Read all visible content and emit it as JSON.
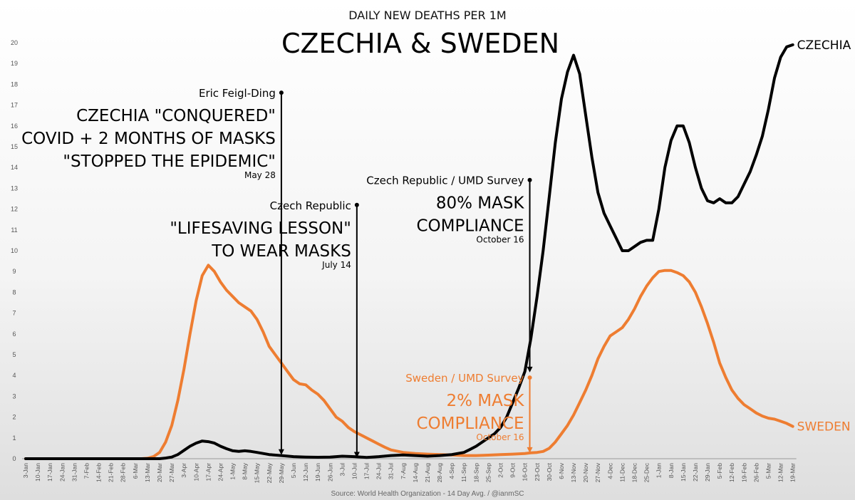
{
  "colors": {
    "czechia": "#000000",
    "sweden": "#ee7d31",
    "axis": "#555555"
  },
  "chart_data": {
    "type": "line",
    "title": "CZECHIA & SWEDEN",
    "subtitle": "DAILY NEW DEATHS PER 1M",
    "source": "Source: World Health Organization - 14 Day Avg. / @ianmSC",
    "xlabel": "",
    "ylabel": "",
    "ylim": [
      0,
      20
    ],
    "y_ticks": [
      0,
      1,
      2,
      3,
      4,
      5,
      6,
      7,
      8,
      9,
      10,
      11,
      12,
      13,
      14,
      15,
      16,
      17,
      18,
      19,
      20
    ],
    "x_start_label": "3-Jan",
    "x_ticks": [
      "3-Jan",
      "10-Jan",
      "17-Jan",
      "24-Jan",
      "31-Jan",
      "7-Feb",
      "14-Feb",
      "21-Feb",
      "28-Feb",
      "6-Mar",
      "13-Mar",
      "20-Mar",
      "27-Mar",
      "3-Apr",
      "10-Apr",
      "17-Apr",
      "24-Apr",
      "1-May",
      "8-May",
      "15-May",
      "22-May",
      "29-May",
      "5-Jun",
      "12-Jun",
      "19-Jun",
      "26-Jun",
      "3-Jul",
      "10-Jul",
      "17-Jul",
      "24-Jul",
      "31-Jul",
      "7-Aug",
      "14-Aug",
      "21-Aug",
      "28-Aug",
      "4-Sep",
      "11-Sep",
      "18-Sep",
      "25-Sep",
      "2-Oct",
      "9-Oct",
      "16-Oct",
      "23-Oct",
      "30-Oct",
      "6-Nov",
      "13-Nov",
      "20-Nov",
      "27-Nov",
      "4-Dec",
      "11-Dec",
      "18-Dec",
      "25-Dec",
      "1-Jan",
      "8-Jan",
      "15-Jan",
      "22-Jan",
      "29-Jan",
      "5-Feb",
      "12-Feb",
      "19-Feb",
      "26-Feb",
      "5-Mar",
      "12-Mar",
      "19-Mar"
    ],
    "series": [
      {
        "name": "CZECHIA",
        "label": "CZECHIA",
        "points": [
          [
            0,
            0
          ],
          [
            11,
            0
          ],
          [
            11.5,
            0.03
          ],
          [
            12,
            0.08
          ],
          [
            12.5,
            0.2
          ],
          [
            13,
            0.4
          ],
          [
            13.5,
            0.6
          ],
          [
            14,
            0.75
          ],
          [
            14.5,
            0.85
          ],
          [
            15,
            0.82
          ],
          [
            15.5,
            0.75
          ],
          [
            16,
            0.6
          ],
          [
            16.5,
            0.48
          ],
          [
            17,
            0.38
          ],
          [
            17.5,
            0.35
          ],
          [
            18,
            0.38
          ],
          [
            18.5,
            0.35
          ],
          [
            19,
            0.3
          ],
          [
            19.5,
            0.25
          ],
          [
            20,
            0.2
          ],
          [
            21,
            0.15
          ],
          [
            22,
            0.1
          ],
          [
            23,
            0.08
          ],
          [
            24,
            0.07
          ],
          [
            25,
            0.08
          ],
          [
            26,
            0.12
          ],
          [
            27,
            0.1
          ],
          [
            28,
            0.06
          ],
          [
            29,
            0.1
          ],
          [
            30,
            0.15
          ],
          [
            31,
            0.18
          ],
          [
            32,
            0.15
          ],
          [
            33,
            0.12
          ],
          [
            34,
            0.15
          ],
          [
            35,
            0.2
          ],
          [
            36,
            0.3
          ],
          [
            36.5,
            0.45
          ],
          [
            37,
            0.6
          ],
          [
            37.5,
            0.8
          ],
          [
            38,
            1.0
          ],
          [
            38.5,
            1.2
          ],
          [
            39,
            1.5
          ],
          [
            39.5,
            2.0
          ],
          [
            40,
            2.7
          ],
          [
            40.5,
            3.4
          ],
          [
            41,
            4.2
          ],
          [
            41.5,
            5.8
          ],
          [
            42,
            7.8
          ],
          [
            42.5,
            10.0
          ],
          [
            43,
            12.6
          ],
          [
            43.5,
            15.2
          ],
          [
            44,
            17.3
          ],
          [
            44.5,
            18.6
          ],
          [
            45,
            19.4
          ],
          [
            45.5,
            18.5
          ],
          [
            46,
            16.5
          ],
          [
            46.5,
            14.5
          ],
          [
            47,
            12.8
          ],
          [
            47.5,
            11.8
          ],
          [
            48,
            11.2
          ],
          [
            48.5,
            10.6
          ],
          [
            49,
            10.0
          ],
          [
            49.5,
            10.0
          ],
          [
            50,
            10.2
          ],
          [
            50.5,
            10.4
          ],
          [
            51,
            10.5
          ],
          [
            51.5,
            10.5
          ],
          [
            52,
            12.0
          ],
          [
            52.5,
            14.0
          ],
          [
            53,
            15.3
          ],
          [
            53.5,
            16.0
          ],
          [
            54,
            16.0
          ],
          [
            54.5,
            15.2
          ],
          [
            55,
            14.0
          ],
          [
            55.5,
            13.0
          ],
          [
            56,
            12.4
          ],
          [
            56.5,
            12.3
          ],
          [
            57,
            12.5
          ],
          [
            57.5,
            12.3
          ],
          [
            58,
            12.3
          ],
          [
            58.5,
            12.6
          ],
          [
            59,
            13.2
          ],
          [
            59.5,
            13.8
          ],
          [
            60,
            14.6
          ],
          [
            60.5,
            15.5
          ],
          [
            61,
            16.8
          ],
          [
            61.5,
            18.3
          ],
          [
            62,
            19.3
          ],
          [
            62.5,
            19.8
          ],
          [
            63,
            19.9
          ]
        ]
      },
      {
        "name": "SWEDEN",
        "label": "SWEDEN",
        "points": [
          [
            0,
            0
          ],
          [
            9.5,
            0
          ],
          [
            10,
            0.02
          ],
          [
            10.5,
            0.1
          ],
          [
            11,
            0.3
          ],
          [
            11.5,
            0.8
          ],
          [
            12,
            1.6
          ],
          [
            12.5,
            2.8
          ],
          [
            13,
            4.3
          ],
          [
            13.5,
            6.0
          ],
          [
            14,
            7.6
          ],
          [
            14.5,
            8.8
          ],
          [
            15,
            9.3
          ],
          [
            15.5,
            9.0
          ],
          [
            16,
            8.5
          ],
          [
            16.5,
            8.1
          ],
          [
            17,
            7.8
          ],
          [
            17.5,
            7.5
          ],
          [
            18,
            7.3
          ],
          [
            18.5,
            7.1
          ],
          [
            19,
            6.7
          ],
          [
            19.5,
            6.1
          ],
          [
            20,
            5.4
          ],
          [
            20.5,
            5.0
          ],
          [
            21,
            4.6
          ],
          [
            21.5,
            4.2
          ],
          [
            22,
            3.8
          ],
          [
            22.5,
            3.6
          ],
          [
            23,
            3.55
          ],
          [
            23.5,
            3.3
          ],
          [
            24,
            3.1
          ],
          [
            24.5,
            2.8
          ],
          [
            25,
            2.4
          ],
          [
            25.5,
            2.0
          ],
          [
            26,
            1.8
          ],
          [
            26.5,
            1.5
          ],
          [
            27,
            1.3
          ],
          [
            27.5,
            1.15
          ],
          [
            28,
            1.0
          ],
          [
            28.5,
            0.85
          ],
          [
            29,
            0.7
          ],
          [
            29.5,
            0.55
          ],
          [
            30,
            0.42
          ],
          [
            31,
            0.3
          ],
          [
            32,
            0.25
          ],
          [
            33,
            0.22
          ],
          [
            34,
            0.2
          ],
          [
            35,
            0.18
          ],
          [
            36,
            0.15
          ],
          [
            37,
            0.15
          ],
          [
            38,
            0.17
          ],
          [
            39,
            0.2
          ],
          [
            40,
            0.22
          ],
          [
            41,
            0.25
          ],
          [
            41.5,
            0.28
          ],
          [
            42,
            0.3
          ],
          [
            42.5,
            0.35
          ],
          [
            43,
            0.5
          ],
          [
            43.5,
            0.8
          ],
          [
            44,
            1.2
          ],
          [
            44.5,
            1.6
          ],
          [
            45,
            2.1
          ],
          [
            45.5,
            2.7
          ],
          [
            46,
            3.3
          ],
          [
            46.5,
            4.0
          ],
          [
            47,
            4.8
          ],
          [
            47.5,
            5.4
          ],
          [
            48,
            5.9
          ],
          [
            48.5,
            6.1
          ],
          [
            49,
            6.3
          ],
          [
            49.5,
            6.7
          ],
          [
            50,
            7.2
          ],
          [
            50.5,
            7.8
          ],
          [
            51,
            8.3
          ],
          [
            51.5,
            8.7
          ],
          [
            52,
            9.0
          ],
          [
            52.5,
            9.05
          ],
          [
            53,
            9.05
          ],
          [
            53.5,
            8.95
          ],
          [
            54,
            8.8
          ],
          [
            54.5,
            8.5
          ],
          [
            55,
            8.0
          ],
          [
            55.5,
            7.3
          ],
          [
            56,
            6.5
          ],
          [
            56.5,
            5.6
          ],
          [
            57,
            4.6
          ],
          [
            57.5,
            3.9
          ],
          [
            58,
            3.3
          ],
          [
            58.5,
            2.9
          ],
          [
            59,
            2.6
          ],
          [
            59.5,
            2.4
          ],
          [
            60,
            2.2
          ],
          [
            60.5,
            2.05
          ],
          [
            61,
            1.95
          ],
          [
            61.5,
            1.9
          ],
          [
            62,
            1.8
          ],
          [
            62.5,
            1.7
          ],
          [
            63,
            1.55
          ]
        ]
      }
    ],
    "annotations": [
      {
        "source": "Eric Feigl-Ding",
        "lines": [
          "CZECHIA \"CONQUERED\"",
          "COVID + 2 MONTHS OF MASKS",
          "\"STOPPED THE EPIDEMIC\""
        ],
        "date": "May 28",
        "x": 21.0,
        "top_y": 17.6,
        "arrow_to_y": 0.18,
        "color": "czechia"
      },
      {
        "source": "Czech Republic",
        "lines": [
          "\"LIFESAVING LESSON\"",
          "TO WEAR MASKS"
        ],
        "date": "July 14",
        "x": 27.2,
        "top_y": 12.2,
        "arrow_to_y": 0.05,
        "color": "czechia"
      },
      {
        "source": "Czech Republic / UMD Survey",
        "lines": [
          "80% MASK",
          "COMPLIANCE"
        ],
        "date": "October 16",
        "x": 41.4,
        "top_y": 13.4,
        "arrow_to_y": 4.15,
        "color": "czechia"
      },
      {
        "source": "Sweden / UMD Survey",
        "lines": [
          "2% MASK",
          "COMPLIANCE"
        ],
        "date": "October 16",
        "x": 41.4,
        "top_y": 3.9,
        "arrow_to_y": 0.28,
        "color": "sweden"
      }
    ]
  }
}
